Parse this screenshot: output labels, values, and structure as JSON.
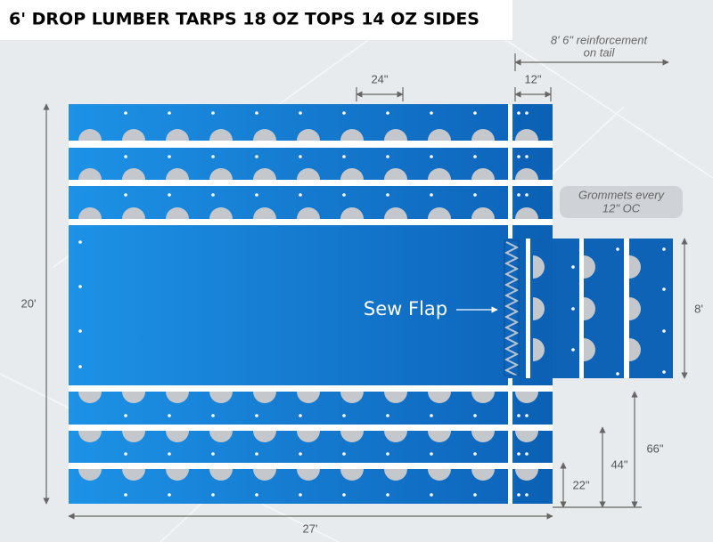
{
  "title": "6' DROP LUMBER TARPS  18 OZ TOPS 14 OZ SIDES",
  "reinforcement": [
    "8' 6\" reinforcement",
    "on tail"
  ],
  "grommet_spacing": "24\"",
  "tail_width": "12\"",
  "grommets_note": [
    "Grommets every",
    "12\" OC"
  ],
  "height": "20'",
  "width": "27'",
  "sew_flap": "Sew Flap",
  "flap_height": "8'",
  "drops": [
    "66\"",
    "44\"",
    "22\""
  ]
}
